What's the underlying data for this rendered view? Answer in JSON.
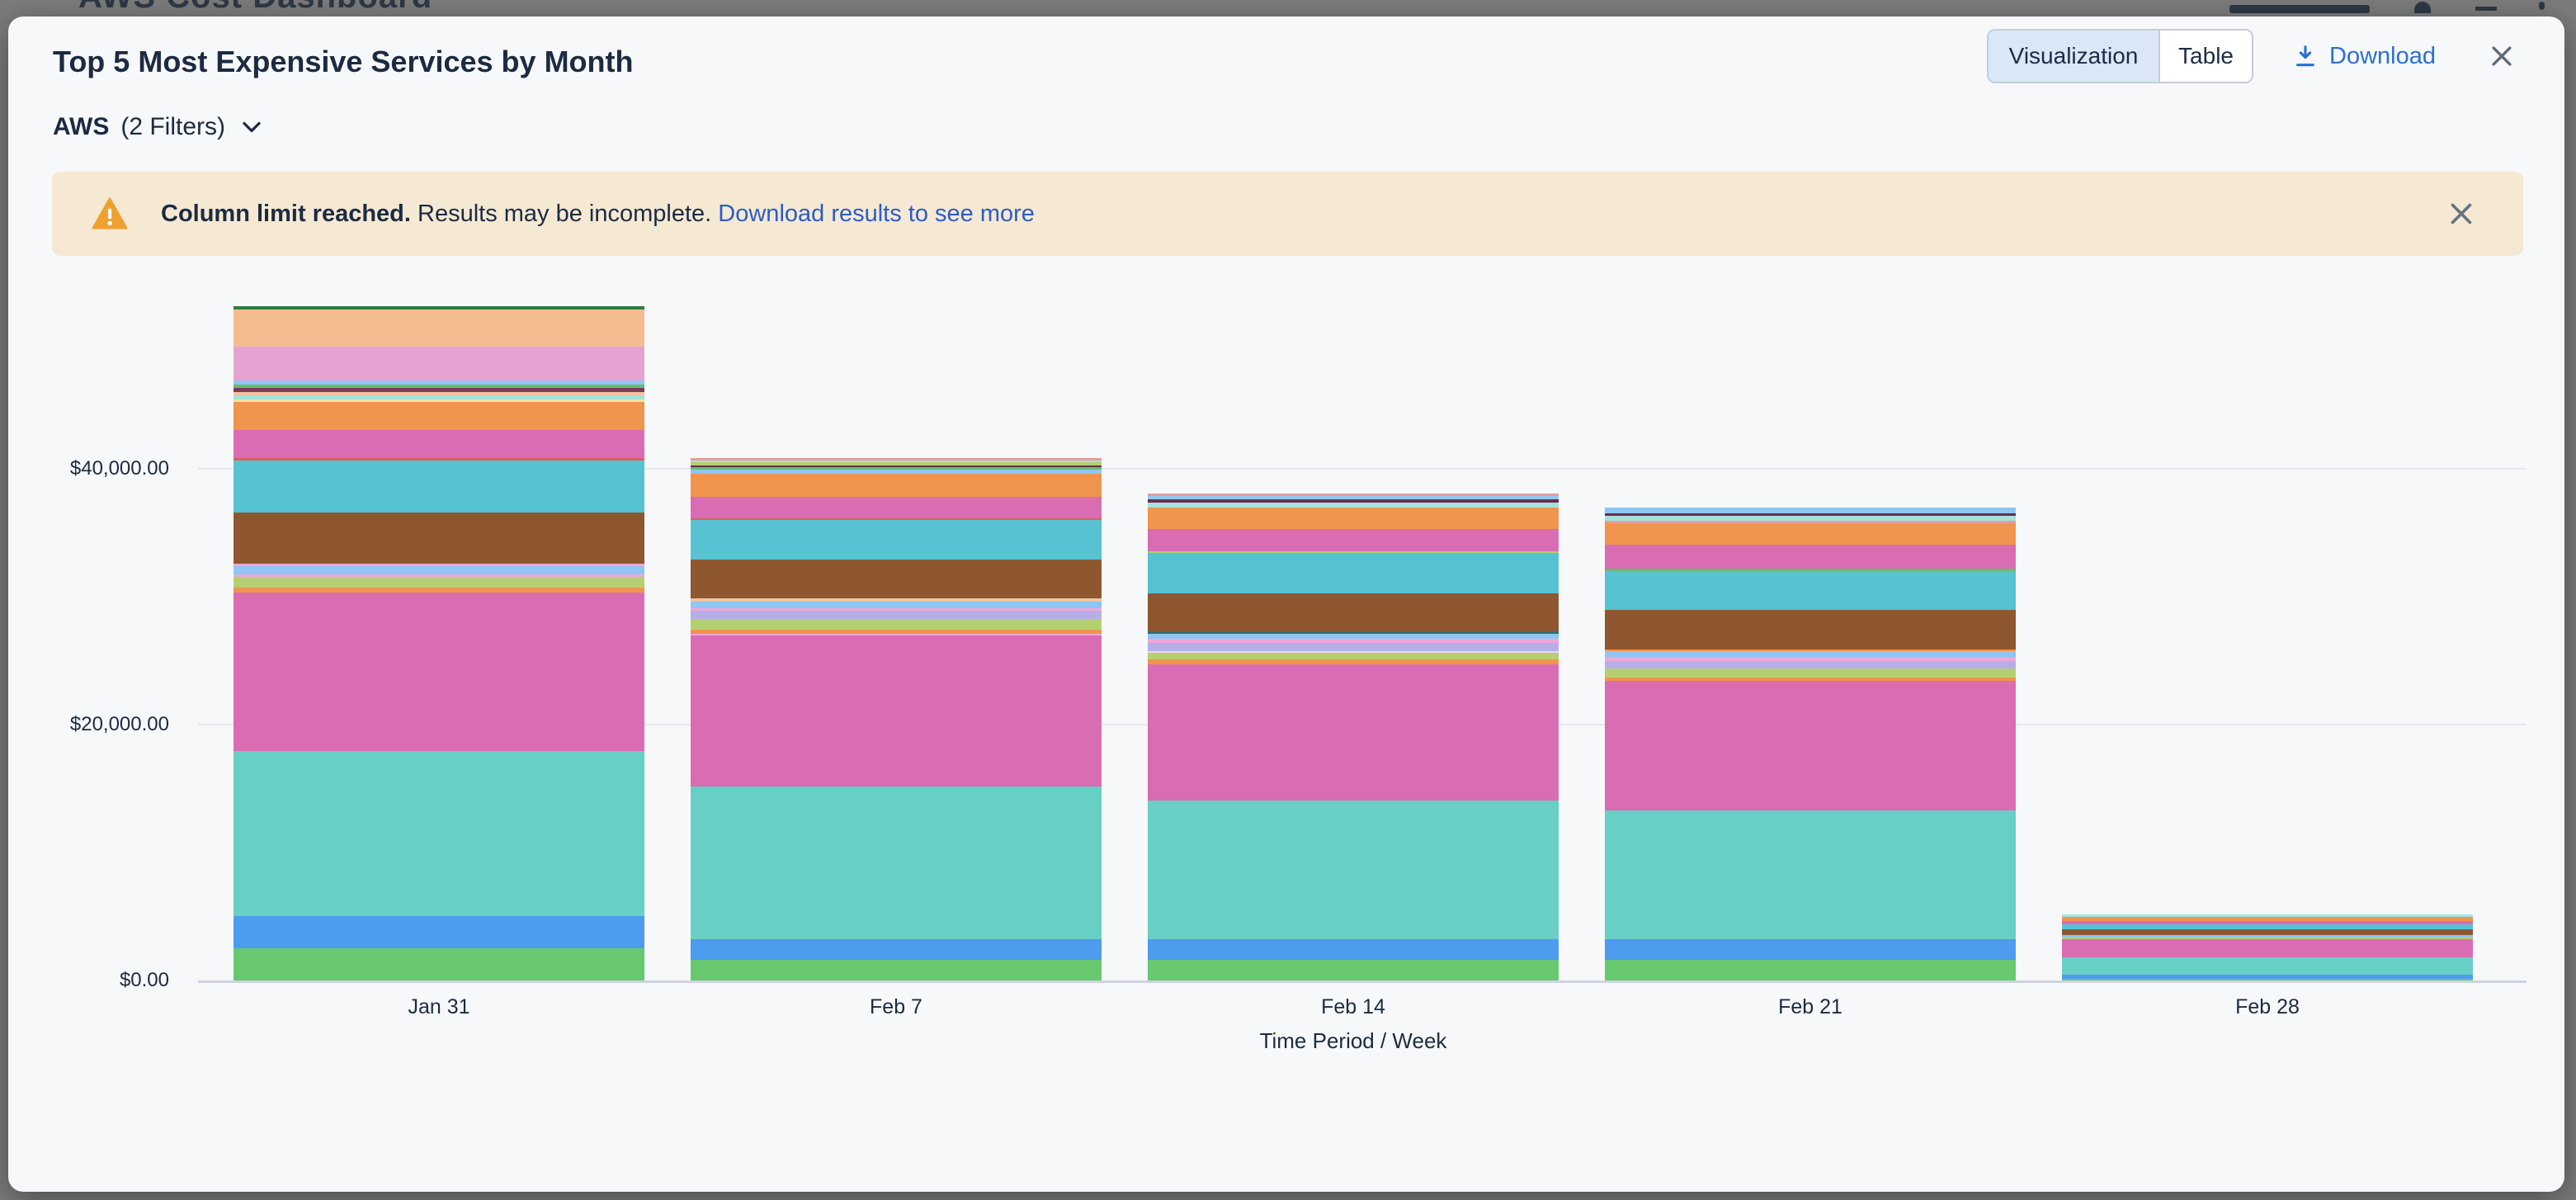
{
  "backdrop": {
    "top_text": "AWS Cost Dashboard"
  },
  "modal": {
    "title": "Top 5 Most Expensive Services by Month",
    "filter": {
      "provider": "AWS",
      "count_label": "(2 Filters)"
    },
    "toggle": {
      "visualization": "Visualization",
      "table": "Table",
      "selected": "Visualization"
    },
    "download": {
      "label": "Download"
    },
    "banner": {
      "title": "Column limit reached.",
      "message": "Results may be incomplete.",
      "link": "Download results to see more"
    }
  },
  "colors": {
    "accent_blue": "#2a6fd6",
    "link_blue": "#2b5cc7",
    "banner_bg": "#f5e9d3",
    "warning_orange": "#efa02f",
    "selected_tab_bg": "#d9e7f7",
    "card_bg": "#f7f8fa",
    "backdrop_gray": "#7c7c7c",
    "text_navy": "#1c2b42"
  },
  "chart_data": {
    "type": "bar",
    "stacked": true,
    "title": "Top 5 Most Expensive Services by Month",
    "xlabel": "Time Period / Week",
    "ylabel": "",
    "categories": [
      "Jan 31",
      "Feb 7",
      "Feb 14",
      "Feb 21",
      "Feb 28"
    ],
    "y_ticks": [
      {
        "label": "$0.00",
        "value": 0
      },
      {
        "label": "$20,000.00",
        "value": 20000
      },
      {
        "label": "$40,000.00",
        "value": 40000
      }
    ],
    "ylim": [
      0,
      53000
    ],
    "grid": "horizontal",
    "legend_position": "none (series names not shown in screenshot)",
    "totals_approx": [
      52700,
      40850,
      38080,
      36950,
      5150
    ],
    "note": "Stacked service-cost segments listed bottom-to-top as {c: color, v: USD approx}",
    "bars": [
      [
        {
          "c": "#67c870",
          "v": 2520
        },
        {
          "c": "#4d9cef",
          "v": 2520
        },
        {
          "c": "#67cfc5",
          "v": 12900
        },
        {
          "c": "#d96cb3",
          "v": 12390
        },
        {
          "c": "#ef954e",
          "v": 390
        },
        {
          "c": "#b5cf70",
          "v": 840
        },
        {
          "c": "#f0a7d6",
          "v": 190
        },
        {
          "c": "#8fc6f3",
          "v": 650
        },
        {
          "c": "#f0a7d6",
          "v": 190
        },
        {
          "c": "#8e5730",
          "v": 4000
        },
        {
          "c": "#57c2d2",
          "v": 4060
        },
        {
          "c": "#d96060",
          "v": 190
        },
        {
          "c": "#d96cb3",
          "v": 2190
        },
        {
          "c": "#ef954e",
          "v": 2190
        },
        {
          "c": "#f6e2a0",
          "v": 190
        },
        {
          "c": "#a5e2dc",
          "v": 320
        },
        {
          "c": "#f2c3a0",
          "v": 260
        },
        {
          "c": "#7c3a5c",
          "v": 320
        },
        {
          "c": "#63bd6e",
          "v": 260
        },
        {
          "c": "#8fc6f3",
          "v": 320
        },
        {
          "c": "#e6a3d2",
          "v": 2650
        },
        {
          "c": "#f4bc90",
          "v": 2900
        },
        {
          "c": "#2f7d40",
          "v": 260
        }
      ],
      [
        {
          "c": "#67c870",
          "v": 1610
        },
        {
          "c": "#4d9cef",
          "v": 1610
        },
        {
          "c": "#67cfc5",
          "v": 11940
        },
        {
          "c": "#d96cb3",
          "v": 11810
        },
        {
          "c": "#f0a7d6",
          "v": 130
        },
        {
          "c": "#ef954e",
          "v": 320
        },
        {
          "c": "#b5cf70",
          "v": 840
        },
        {
          "c": "#b7aee9",
          "v": 650
        },
        {
          "c": "#f0a7d6",
          "v": 190
        },
        {
          "c": "#8fc6f3",
          "v": 520
        },
        {
          "c": "#f2c3a0",
          "v": 260
        },
        {
          "c": "#8e5730",
          "v": 3030
        },
        {
          "c": "#57c2d2",
          "v": 3100
        },
        {
          "c": "#d96060",
          "v": 130
        },
        {
          "c": "#d96cb3",
          "v": 1680
        },
        {
          "c": "#ef954e",
          "v": 1810
        },
        {
          "c": "#8fc6f3",
          "v": 320
        },
        {
          "c": "#63bd6e",
          "v": 190
        },
        {
          "c": "#682e4f",
          "v": 130
        },
        {
          "c": "#b5cf70",
          "v": 260
        },
        {
          "c": "#a5e2dc",
          "v": 130
        },
        {
          "c": "#ea9b9b",
          "v": 190
        }
      ],
      [
        {
          "c": "#67c870",
          "v": 1610
        },
        {
          "c": "#4d9cef",
          "v": 1610
        },
        {
          "c": "#67cfc5",
          "v": 10840
        },
        {
          "c": "#d96cb3",
          "v": 10650
        },
        {
          "c": "#ef954e",
          "v": 390
        },
        {
          "c": "#b5cf70",
          "v": 520
        },
        {
          "c": "#f2d9ea",
          "v": 130
        },
        {
          "c": "#b7aee9",
          "v": 650
        },
        {
          "c": "#f0a7d6",
          "v": 320
        },
        {
          "c": "#8fc6f3",
          "v": 390
        },
        {
          "c": "#2f6f74",
          "v": 190
        },
        {
          "c": "#8e5730",
          "v": 2970
        },
        {
          "c": "#57c2d2",
          "v": 3160
        },
        {
          "c": "#b5cf70",
          "v": 130
        },
        {
          "c": "#d96cb3",
          "v": 1740
        },
        {
          "c": "#ef954e",
          "v": 1680
        },
        {
          "c": "#a5e2dc",
          "v": 390
        },
        {
          "c": "#682e4f",
          "v": 260
        },
        {
          "c": "#8fc6f3",
          "v": 260
        },
        {
          "c": "#ea9b9b",
          "v": 190
        }
      ],
      [
        {
          "c": "#67c870",
          "v": 1610
        },
        {
          "c": "#4d9cef",
          "v": 1610
        },
        {
          "c": "#67cfc5",
          "v": 10060
        },
        {
          "c": "#d96cb3",
          "v": 10130
        },
        {
          "c": "#ef954e",
          "v": 260
        },
        {
          "c": "#b5cf70",
          "v": 710
        },
        {
          "c": "#b7aee9",
          "v": 580
        },
        {
          "c": "#f0a7d6",
          "v": 320
        },
        {
          "c": "#8fc6f3",
          "v": 450
        },
        {
          "c": "#ef954e",
          "v": 130
        },
        {
          "c": "#8e5730",
          "v": 3100
        },
        {
          "c": "#57c2d2",
          "v": 3030
        },
        {
          "c": "#63bd6e",
          "v": 190
        },
        {
          "c": "#d96cb3",
          "v": 1870
        },
        {
          "c": "#ef954e",
          "v": 1680
        },
        {
          "c": "#ea9b9b",
          "v": 190
        },
        {
          "c": "#a5e2dc",
          "v": 390
        },
        {
          "c": "#682e4f",
          "v": 190
        },
        {
          "c": "#8fc6f3",
          "v": 450
        }
      ],
      [
        {
          "c": "#67c870",
          "v": 130
        },
        {
          "c": "#4d9cef",
          "v": 320
        },
        {
          "c": "#67cfc5",
          "v": 1350
        },
        {
          "c": "#d96cb3",
          "v": 1420
        },
        {
          "c": "#b5cf70",
          "v": 130
        },
        {
          "c": "#8fc6f3",
          "v": 190
        },
        {
          "c": "#8e5730",
          "v": 450
        },
        {
          "c": "#57c2d2",
          "v": 390
        },
        {
          "c": "#d96cb3",
          "v": 260
        },
        {
          "c": "#ef954e",
          "v": 320
        },
        {
          "c": "#a5e2dc",
          "v": 190
        }
      ]
    ]
  }
}
